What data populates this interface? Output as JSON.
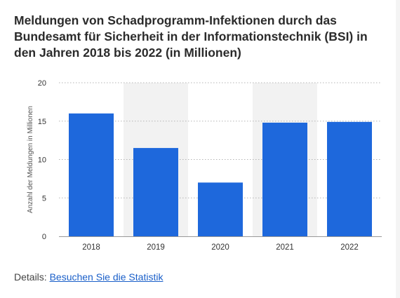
{
  "title": "Meldungen von Schadprogramm-Infektionen durch das Bundesamt für Sicherheit in der Informationstechnik (BSI) in den Jahren 2018 bis 2022 (in Millionen)",
  "details_label": "Details:",
  "details_link": "Besuchen Sie die Statistik",
  "colors": {
    "bar": "#1e68dc",
    "band": "#f2f2f2",
    "grid": "#b5b5b5",
    "tick_text": "#333333"
  },
  "chart_data": {
    "type": "bar",
    "categories": [
      "2018",
      "2019",
      "2020",
      "2021",
      "2022"
    ],
    "values": [
      16,
      11.5,
      7,
      14.8,
      14.9
    ],
    "ylabel": "Anzahl der Meldungen in Millionen",
    "xlabel": "",
    "ylim": [
      0,
      20
    ],
    "yticks": [
      0,
      5,
      10,
      15,
      20
    ],
    "grid": true
  }
}
